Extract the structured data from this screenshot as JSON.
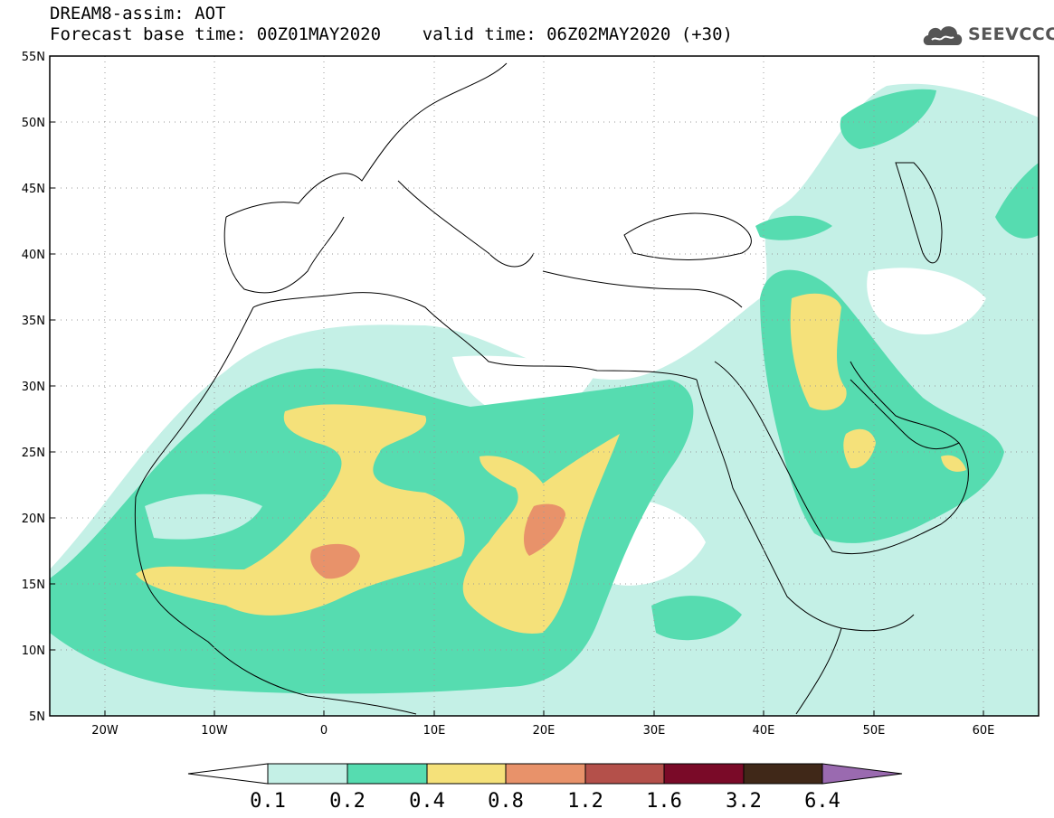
{
  "header": {
    "line1": "DREAM8-assim: AOT",
    "line2": "Forecast base time: 00Z01MAY2020    valid time: 06Z02MAY2020 (+30)"
  },
  "logo": {
    "text": "SEEVCCC",
    "icon": "cloud-icon"
  },
  "map": {
    "lon_range": [
      -25,
      65
    ],
    "lat_range": [
      5,
      55
    ],
    "lat_ticks": [
      "55N",
      "50N",
      "45N",
      "40N",
      "35N",
      "30N",
      "25N",
      "20N",
      "15N",
      "10N",
      "5N"
    ],
    "lon_ticks": [
      "20W",
      "10W",
      "0",
      "10E",
      "20E",
      "30E",
      "40E",
      "50E",
      "60E"
    ]
  },
  "colorbar": {
    "labels": [
      "0.1",
      "0.2",
      "0.4",
      "0.8",
      "1.2",
      "1.6",
      "3.2",
      "6.4"
    ],
    "colors": [
      "#ffffff",
      "#c4f0e6",
      "#56dcb0",
      "#f5e17a",
      "#e8926a",
      "#b4504a",
      "#7a0a28",
      "#402818",
      "#9a6ab0"
    ]
  }
}
